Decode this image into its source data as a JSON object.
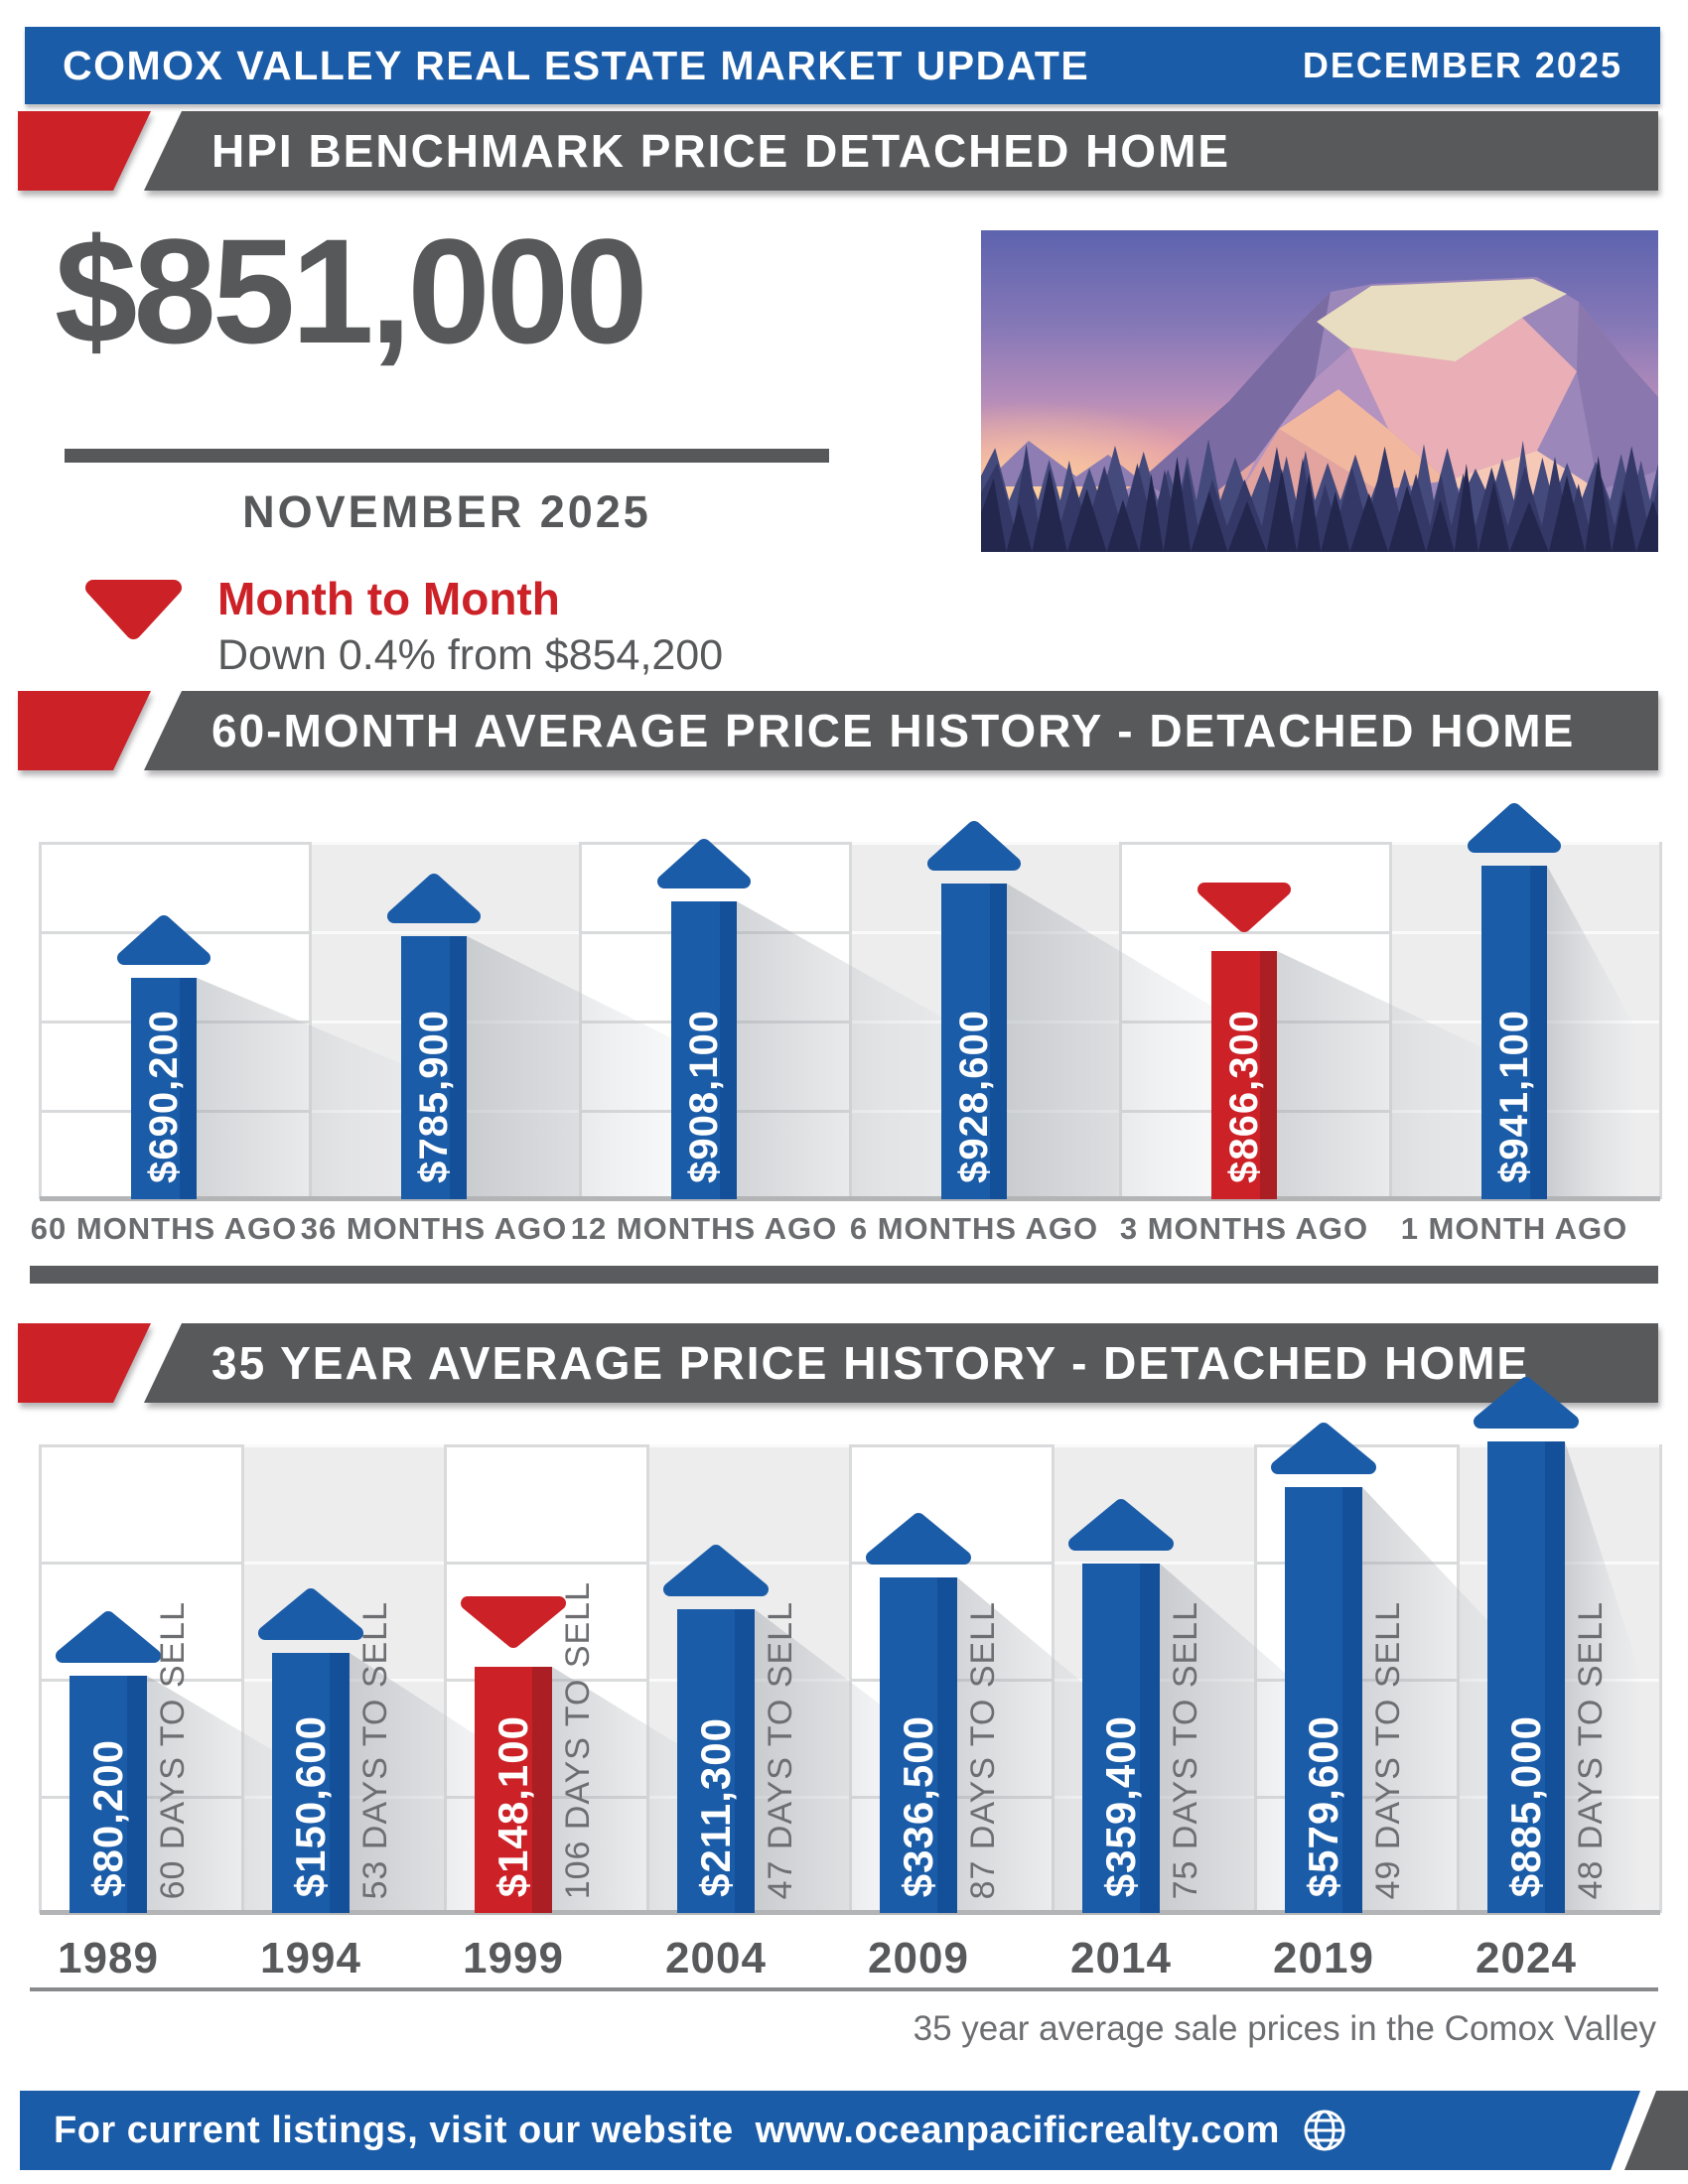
{
  "header": {
    "title": "COMOX VALLEY REAL ESTATE MARKET UPDATE",
    "date": "DECEMBER 2025"
  },
  "benchmark": {
    "banner_title": "HPI BENCHMARK PRICE DETACHED HOME",
    "price": "$851,000",
    "price_period": "NOVEMBER 2025",
    "trend": {
      "direction": "down",
      "icon": "arrow-down-icon",
      "title": "Month to Month",
      "detail": "Down 0.4% from $854,200"
    }
  },
  "chart_data": [
    {
      "type": "bar",
      "title": "60-MONTH AVERAGE PRICE HISTORY - DETACHED HOME",
      "categories": [
        "60 MONTHS AGO",
        "36 MONTHS AGO",
        "12 MONTHS AGO",
        "6 MONTHS AGO",
        "3 MONTHS AGO",
        "1 MONTH AGO"
      ],
      "values": [
        690200,
        785900,
        908100,
        928600,
        866300,
        941100
      ],
      "value_labels": [
        "$690,200",
        "$785,900",
        "$908,100",
        "$928,600",
        "$866,300",
        "$941,100"
      ],
      "directions": [
        "up",
        "up",
        "up",
        "up",
        "down",
        "up"
      ],
      "bar_colors": [
        "blue",
        "blue",
        "blue",
        "blue",
        "red",
        "blue"
      ],
      "value_axis_labels": false,
      "grid": true
    },
    {
      "type": "bar",
      "title": "35 YEAR AVERAGE PRICE HISTORY - DETACHED HOME",
      "categories": [
        "1989",
        "1994",
        "1999",
        "2004",
        "2009",
        "2014",
        "2019",
        "2024"
      ],
      "values": [
        80200,
        150600,
        148100,
        211300,
        336500,
        359400,
        579600,
        885000
      ],
      "value_labels": [
        "$80,200",
        "$150,600",
        "$148,100",
        "$211,300",
        "$336,500",
        "$359,400",
        "$579,600",
        "$885,000"
      ],
      "days_to_sell": [
        "60 DAYS TO SELL",
        "53 DAYS TO SELL",
        "106 DAYS TO SELL",
        "47 DAYS TO SELL",
        "87 DAYS TO SELL",
        "75 DAYS TO SELL",
        "49 DAYS TO SELL",
        "48 DAYS TO SELL"
      ],
      "directions": [
        "up",
        "up",
        "down",
        "up",
        "up",
        "up",
        "up",
        "up"
      ],
      "bar_colors": [
        "blue",
        "blue",
        "red",
        "blue",
        "blue",
        "blue",
        "blue",
        "blue"
      ],
      "value_axis_labels": false,
      "grid": true,
      "footnote": "35 year average sale prices in the Comox Valley"
    }
  ],
  "footer": {
    "text": "For current listings, visit our website",
    "url": "www.oceanpacificrealty.com",
    "icon": "globe-icon"
  },
  "colors": {
    "blue": "#1b5ca8",
    "blue_dark": "#14509a",
    "red": "#cc2127",
    "red_dark": "#ab1e24",
    "banner_gray": "#58595b",
    "text_dark": "#57585a",
    "text_medium": "#6d6e71",
    "grid_line": "#d9dadb",
    "baseline": "#b2b4b6",
    "column_shade": "#ededee"
  }
}
